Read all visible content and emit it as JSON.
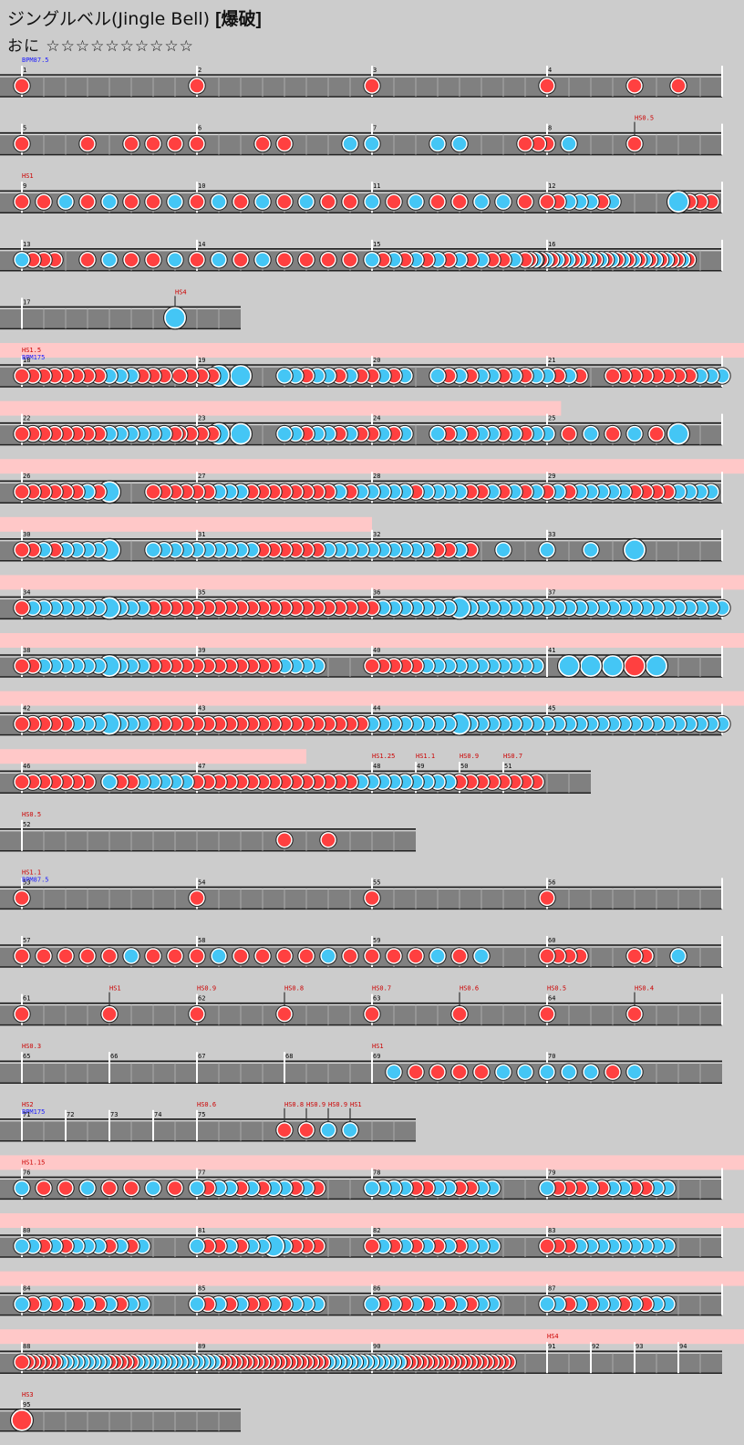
{
  "header": {
    "song_title": "ジングルベル(Jingle Bell)",
    "course": "[爆破]",
    "difficulty_name": "おに",
    "stars": "☆☆☆☆☆☆☆☆☆☆"
  },
  "rows": [
    {
      "bars": [
        1,
        2,
        3,
        4
      ],
      "labels": [
        {
          "t": "BPM87.5",
          "c": "blue",
          "at": 0
        }
      ],
      "notes": [
        [
          0,
          0,
          "d"
        ],
        [
          1,
          0,
          "d"
        ],
        [
          2,
          0,
          "d"
        ],
        [
          3,
          0,
          "d"
        ],
        [
          3,
          0.5,
          "d"
        ],
        [
          3,
          0.75,
          "d"
        ]
      ]
    },
    {
      "bars": [
        5,
        6,
        7,
        8
      ],
      "labels": [
        {
          "t": "HS0.5",
          "c": "red",
          "at": 3.5,
          "pole": true
        }
      ],
      "notes": [
        [
          0,
          0,
          "d"
        ],
        [
          0,
          0.375,
          "d"
        ],
        [
          0,
          0.625,
          "d"
        ],
        [
          0,
          0.75,
          "d"
        ],
        [
          0,
          0.875,
          "d"
        ],
        [
          1,
          0,
          "d"
        ],
        [
          1,
          0.375,
          "d"
        ],
        [
          1,
          0.5,
          "d"
        ],
        [
          1,
          0.875,
          "k"
        ],
        [
          2,
          0,
          "k"
        ],
        [
          2,
          0.375,
          "k"
        ],
        [
          2,
          0.5,
          "k"
        ],
        [
          2,
          0.875,
          "d"
        ],
        [
          3,
          -0.05,
          "d"
        ],
        [
          3,
          0,
          "d"
        ],
        [
          3,
          0.125,
          "k"
        ],
        [
          3,
          0.5,
          "d"
        ]
      ]
    },
    {
      "bars": [
        9,
        10,
        11,
        12
      ],
      "labels": [
        {
          "t": "HS1",
          "c": "red",
          "at": 0
        }
      ],
      "notes": "row3"
    },
    {
      "bars": [
        13,
        14,
        15,
        16
      ],
      "labels": [],
      "notes": "row4"
    },
    {
      "bars": [
        17
      ],
      "width": 1.25,
      "labels": [
        {
          "t": "HS4",
          "c": "red",
          "at": 0.875,
          "pole": true
        }
      ],
      "notes": [
        [
          0,
          0.875,
          "K"
        ]
      ]
    },
    {
      "bars": [
        18,
        19,
        20,
        21
      ],
      "pink": true,
      "labels": [
        {
          "t": "HS1.5",
          "c": "red",
          "at": 0
        },
        {
          "t": "BPM175",
          "c": "blue",
          "at": 0,
          "dy": 8
        }
      ],
      "notes": "row6"
    },
    {
      "bars": [
        22,
        23,
        24,
        25
      ],
      "pink": true,
      "pinkEnd": 0.77,
      "labels": [],
      "notes": "row7"
    },
    {
      "bars": [
        26,
        27,
        28,
        29
      ],
      "pink": true,
      "labels": [],
      "notes": "row8"
    },
    {
      "bars": [
        30,
        31,
        32,
        33
      ],
      "pink": true,
      "pinkEnd": 0.5,
      "labels": [],
      "notes": "row9"
    },
    {
      "bars": [
        34,
        35,
        36,
        37
      ],
      "pink": true,
      "labels": [],
      "notes": "row10"
    },
    {
      "bars": [
        38,
        39,
        40,
        41
      ],
      "pink": true,
      "labels": [],
      "notes": "row11"
    },
    {
      "bars": [
        42,
        43,
        44,
        45
      ],
      "pink": true,
      "labels": [],
      "notes": "row12"
    },
    {
      "bars": [
        46,
        47,
        48,
        49,
        50,
        51
      ],
      "pink": true,
      "pinkEnd": 0.5,
      "widths": [
        1,
        1,
        0.25,
        0.25,
        0.25,
        0.5
      ],
      "labels": [
        {
          "t": "HS1.25",
          "c": "red",
          "at": 2
        },
        {
          "t": "HS1.1",
          "c": "red",
          "at": 2.25
        },
        {
          "t": "HS0.9",
          "c": "red",
          "at": 2.5
        },
        {
          "t": "HS0.7",
          "c": "red",
          "at": 2.75
        }
      ],
      "notes": "row13"
    },
    {
      "bars": [
        52
      ],
      "width": 2.25,
      "labels": [
        {
          "t": "HS0.5",
          "c": "red",
          "at": 0
        }
      ],
      "notes": [
        [
          0,
          1.5,
          "d"
        ],
        [
          0,
          1.75,
          "d"
        ]
      ]
    },
    {
      "bars": [
        53,
        54,
        55,
        56
      ],
      "labels": [
        {
          "t": "HS1.1",
          "c": "red",
          "at": 0
        },
        {
          "t": "BPM87.5",
          "c": "blue",
          "at": 0,
          "dy": 8
        }
      ],
      "notes": [
        [
          0,
          0,
          "d"
        ],
        [
          1,
          0,
          "d"
        ],
        [
          2,
          0,
          "d"
        ],
        [
          3,
          0,
          "d"
        ]
      ]
    },
    {
      "bars": [
        57,
        58,
        59,
        60
      ],
      "labels": [],
      "notes": "row16"
    },
    {
      "bars": [
        61,
        62,
        63,
        64
      ],
      "labels": [
        {
          "t": "HS1",
          "c": "red",
          "at": 0.5,
          "pole": true
        },
        {
          "t": "HS0.9",
          "c": "red",
          "at": 1
        },
        {
          "t": "HS0.8",
          "c": "red",
          "at": 1.5,
          "pole": true
        },
        {
          "t": "HS0.7",
          "c": "red",
          "at": 2
        },
        {
          "t": "HS0.6",
          "c": "red",
          "at": 2.5,
          "pole": true
        },
        {
          "t": "HS0.5",
          "c": "red",
          "at": 3
        },
        {
          "t": "HS0.4",
          "c": "red",
          "at": 3.5,
          "pole": true
        }
      ],
      "notes": [
        [
          0,
          0,
          "d"
        ],
        [
          0,
          0.5,
          "d"
        ],
        [
          1,
          0,
          "d"
        ],
        [
          1,
          0.5,
          "d"
        ],
        [
          2,
          0,
          "d"
        ],
        [
          2,
          0.5,
          "d"
        ],
        [
          3,
          0,
          "d"
        ],
        [
          3,
          0.5,
          "d"
        ]
      ]
    },
    {
      "bars": [
        65,
        66,
        67,
        68,
        69,
        70
      ],
      "widths": [
        0.5,
        0.5,
        0.5,
        0.5,
        1,
        1
      ],
      "labels": [
        {
          "t": "HS0.3",
          "c": "red",
          "at": 0
        },
        {
          "t": "HS1",
          "c": "red",
          "at": 2
        }
      ],
      "notes": "row18"
    },
    {
      "bars": [
        71,
        72,
        73,
        74,
        75
      ],
      "widths": [
        0.25,
        0.25,
        0.25,
        0.25,
        1.25
      ],
      "labels": [
        {
          "t": "HS2",
          "c": "red",
          "at": 0
        },
        {
          "t": "BPM175",
          "c": "blue",
          "at": 0,
          "dy": 8
        },
        {
          "t": "HS0.6",
          "c": "red",
          "at": 1
        },
        {
          "t": "HS0.8",
          "c": "red",
          "at": 1.5,
          "pole": true
        },
        {
          "t": "HS0.9",
          "c": "red",
          "at": 1.625,
          "pole": true
        },
        {
          "t": "HS0.9",
          "c": "red",
          "at": 1.75,
          "pole": true
        },
        {
          "t": "HS1",
          "c": "red",
          "at": 1.875,
          "pole": true
        }
      ],
      "notes": [
        [
          0,
          1.5,
          "d"
        ],
        [
          0,
          1.625,
          "d"
        ],
        [
          0,
          1.75,
          "k"
        ],
        [
          0,
          1.875,
          "k"
        ]
      ]
    },
    {
      "bars": [
        76,
        77,
        78,
        79
      ],
      "pink": true,
      "labels": [
        {
          "t": "HS1.15",
          "c": "red",
          "at": 0
        }
      ],
      "notes": "row20"
    },
    {
      "bars": [
        80,
        81,
        82,
        83
      ],
      "pink": true,
      "labels": [],
      "notes": "row21"
    },
    {
      "bars": [
        84,
        85,
        86,
        87
      ],
      "pink": true,
      "labels": [],
      "notes": "row22"
    },
    {
      "bars": [
        88,
        89,
        90,
        91,
        92,
        93,
        94
      ],
      "pink": true,
      "widths": [
        1,
        1,
        1,
        0.25,
        0.25,
        0.25,
        0.25
      ],
      "labels": [
        {
          "t": "HS4",
          "c": "red",
          "at": 3
        }
      ],
      "notes": "row23"
    },
    {
      "bars": [
        95
      ],
      "width": 1.25,
      "labels": [
        {
          "t": "HS3",
          "c": "red",
          "at": 0
        }
      ],
      "notes": [
        [
          0,
          0,
          "D"
        ]
      ]
    }
  ]
}
